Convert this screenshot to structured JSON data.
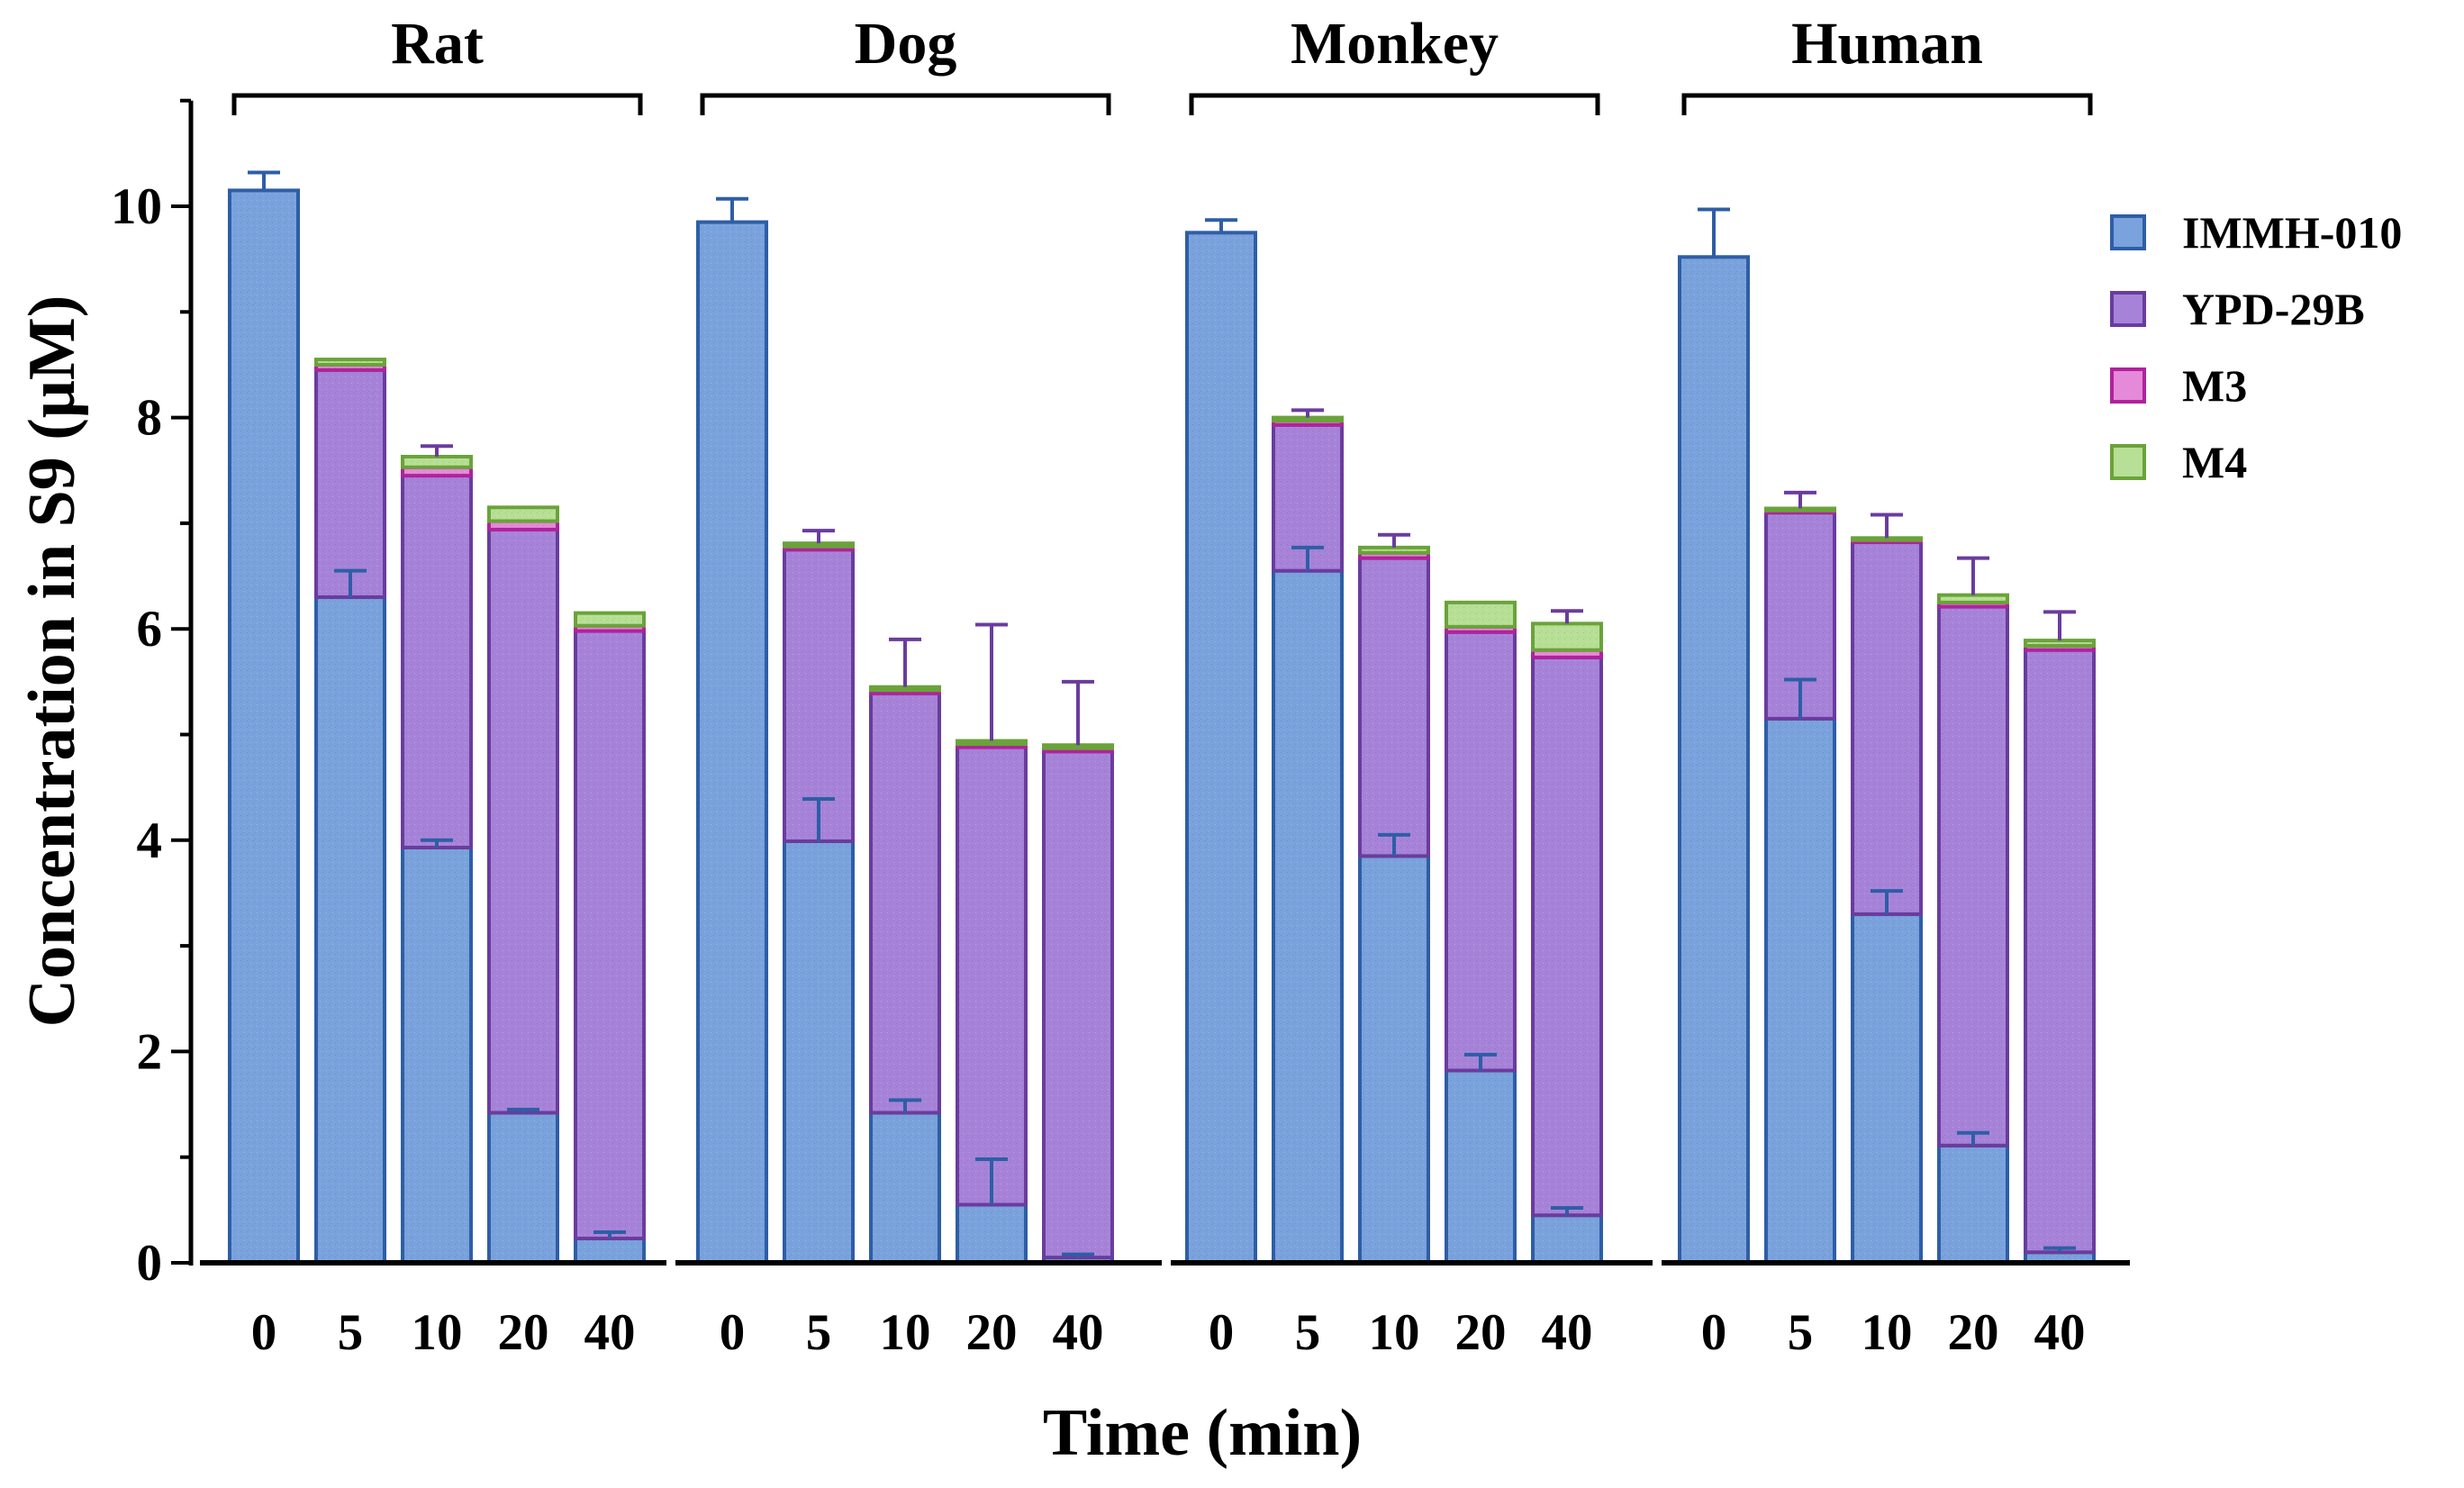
{
  "chart_data": {
    "type": "bar",
    "stacked": true,
    "ylabel": "Concentration in S9 (μM)",
    "xlabel": "Time (min)",
    "ylim": [
      0,
      11
    ],
    "yticks": [
      0,
      2,
      4,
      6,
      8,
      10
    ],
    "legend_position": "right",
    "series_names": [
      "IMMH-010",
      "YPD-29B",
      "M3",
      "M4"
    ],
    "series_fill": [
      "#7aa2dc",
      "#a683d8",
      "#e48ad8",
      "#b7df95"
    ],
    "series_edge": [
      "#2e5ea6",
      "#6a3c9e",
      "#b1229b",
      "#6aa33a"
    ],
    "groups": [
      {
        "name": "Rat",
        "times": [
          "0",
          "5",
          "10",
          "20",
          "40"
        ],
        "stacks": [
          [
            10.15,
            0,
            0,
            0
          ],
          [
            6.3,
            2.15,
            0.05,
            0.05
          ],
          [
            3.93,
            3.52,
            0.08,
            0.1
          ],
          [
            1.42,
            5.52,
            0.08,
            0.13
          ],
          [
            0.23,
            5.75,
            0.05,
            0.12
          ]
        ],
        "top_errors": [
          0.17,
          0,
          0.1,
          0,
          0
        ],
        "inner_errors": [
          null,
          0.25,
          0.07,
          0.03,
          0.06
        ]
      },
      {
        "name": "Dog",
        "times": [
          "0",
          "5",
          "10",
          "20",
          "40"
        ],
        "stacks": [
          [
            9.85,
            0,
            0,
            0
          ],
          [
            3.99,
            2.76,
            0.03,
            0.03
          ],
          [
            1.42,
            3.97,
            0.03,
            0.03
          ],
          [
            0.55,
            4.33,
            0.03,
            0.03
          ],
          [
            0.05,
            4.79,
            0.03,
            0.03
          ]
        ],
        "top_errors": [
          0.22,
          0.12,
          0.45,
          1.1,
          0.6
        ],
        "inner_errors": [
          null,
          0.4,
          0.12,
          0.43,
          0.03
        ]
      },
      {
        "name": "Monkey",
        "times": [
          "0",
          "5",
          "10",
          "20",
          "40"
        ],
        "stacks": [
          [
            9.75,
            0,
            0,
            0
          ],
          [
            6.55,
            1.38,
            0.04,
            0.03
          ],
          [
            3.85,
            2.82,
            0.05,
            0.05
          ],
          [
            1.82,
            4.15,
            0.05,
            0.23
          ],
          [
            0.45,
            5.28,
            0.07,
            0.25
          ]
        ],
        "top_errors": [
          0.12,
          0.07,
          0.12,
          0,
          0.12
        ],
        "inner_errors": [
          null,
          0.22,
          0.2,
          0.15,
          0.07
        ]
      },
      {
        "name": "Human",
        "times": [
          "0",
          "5",
          "10",
          "20",
          "40"
        ],
        "stacks": [
          [
            9.52,
            0,
            0,
            0
          ],
          [
            5.15,
            1.95,
            0.02,
            0.02
          ],
          [
            3.3,
            3.52,
            0.02,
            0.02
          ],
          [
            1.11,
            5.1,
            0.04,
            0.07
          ],
          [
            0.1,
            5.7,
            0.04,
            0.05
          ]
        ],
        "top_errors": [
          0.45,
          0.15,
          0.22,
          0.35,
          0.27
        ],
        "inner_errors": [
          null,
          0.37,
          0.22,
          0.12,
          0.04
        ]
      }
    ]
  }
}
